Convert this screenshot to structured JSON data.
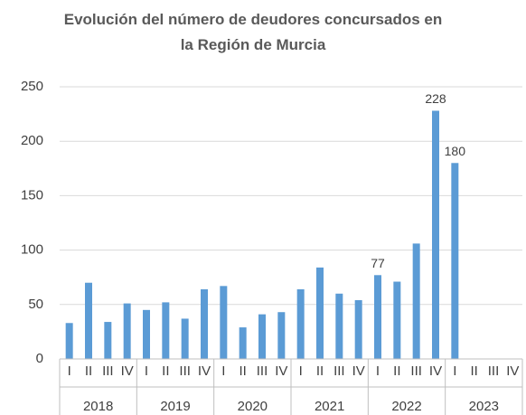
{
  "chart_data": {
    "type": "bar",
    "title": "Evolución del número de deudores concursados en la Región de Murcia",
    "categories": [
      "I",
      "II",
      "III",
      "IV",
      "I",
      "II",
      "III",
      "IV",
      "I",
      "II",
      "III",
      "IV",
      "I",
      "II",
      "III",
      "IV",
      "I",
      "II",
      "III",
      "IV",
      "I",
      "II",
      "III",
      "IV"
    ],
    "groups": [
      "2018",
      "2019",
      "2020",
      "2021",
      "2022",
      "2023"
    ],
    "values": [
      33,
      70,
      34,
      51,
      45,
      52,
      37,
      64,
      67,
      29,
      41,
      43,
      64,
      84,
      60,
      54,
      77,
      71,
      106,
      228,
      180,
      null,
      null,
      null
    ],
    "value_labels": [
      null,
      null,
      null,
      null,
      null,
      null,
      null,
      null,
      null,
      null,
      null,
      null,
      null,
      null,
      null,
      null,
      "77",
      null,
      null,
      "228",
      "180",
      null,
      null,
      null
    ],
    "color": "#5b9bd5",
    "ylim": [
      0,
      250
    ],
    "yticks": [
      0,
      50,
      100,
      150,
      200,
      250
    ],
    "grid": true
  }
}
